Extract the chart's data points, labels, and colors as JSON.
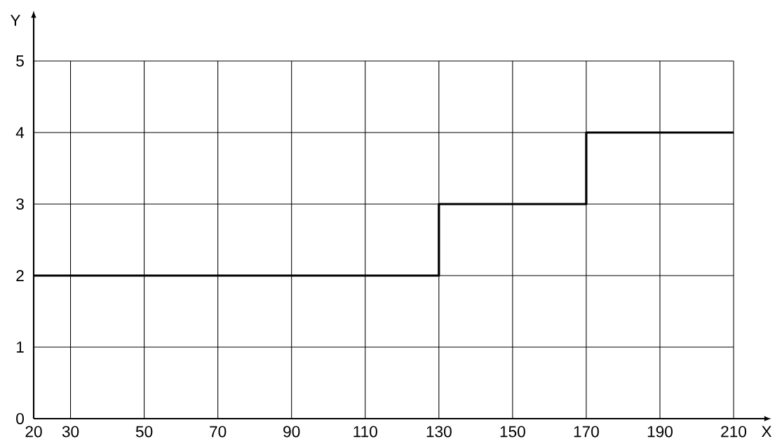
{
  "chart_data": {
    "type": "step",
    "xlabel": "X",
    "ylabel": "Y",
    "x": [
      20,
      130,
      170,
      210
    ],
    "series": [
      {
        "color": "#000000",
        "values": [
          2,
          3,
          4,
          4
        ]
      }
    ],
    "xlim": [
      20,
      210
    ],
    "ylim": [
      0,
      5
    ],
    "xticks": [
      20,
      30,
      50,
      70,
      90,
      110,
      130,
      150,
      170,
      190,
      210
    ],
    "yticks": [
      0,
      1,
      2,
      3,
      4,
      5
    ],
    "grid": true,
    "line_style": "solid"
  }
}
